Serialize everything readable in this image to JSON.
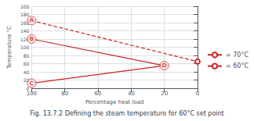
{
  "chart_data": {
    "type": "line",
    "title": "Fig. 13.7.2 Defining the steam temperature for 60°C set point",
    "xlabel": "Percentage heat load",
    "ylabel": "Temperature °C",
    "xlim": [
      100,
      0
    ],
    "ylim": [
      0,
      200
    ],
    "xticks": [
      100,
      80,
      60,
      40,
      20,
      0
    ],
    "yticks": [
      0,
      20,
      40,
      60,
      80,
      100,
      120,
      140,
      160,
      180,
      200
    ],
    "grid": true,
    "legend": "right",
    "series": [
      {
        "name": "= 70°C",
        "color": "#cc2222",
        "line_style": "dashed",
        "marker": "circle",
        "x": [
          100,
          0
        ],
        "values": [
          165,
          65
        ]
      },
      {
        "name": "= 60°C",
        "color": "#cc2222",
        "line_style": "solid",
        "marker": "circle",
        "x": [
          100,
          20
        ],
        "values": [
          120,
          55
        ]
      },
      {
        "color": "#cc2222",
        "line_style": "solid",
        "marker": "circle",
        "x": [
          100,
          20
        ],
        "values": [
          12,
          55
        ]
      }
    ],
    "annotations": [
      {
        "x": 100,
        "y": 165,
        "text": "A"
      },
      {
        "x": 100,
        "y": 120,
        "text": "B"
      },
      {
        "x": 100,
        "y": 12,
        "text": "C"
      },
      {
        "x": 20,
        "y": 55,
        "text": "D"
      }
    ]
  }
}
